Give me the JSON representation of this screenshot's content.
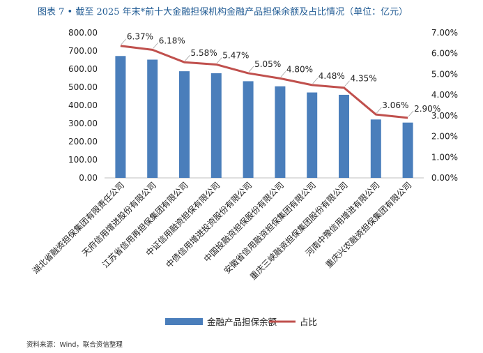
{
  "title": "图表 7 • 截至 2025 年末*前十大金融担保机构金融产品担保余额及占比情况（单位：亿元）",
  "source": "资料来源：Wind，联合资信整理",
  "colors": {
    "bar": "#4a7ebb",
    "line": "#c0504d",
    "title": "#1f5a93"
  },
  "chart_data": {
    "type": "bar",
    "categories": [
      "湖北省融资担保集团有限责任公司",
      "天府信用增进股份有限公司",
      "江苏省信用再担保集团有限公司",
      "中证信用融资担保有限公司",
      "中债信用增进投资股份有限公司",
      "中国投融资担保股份有限公司",
      "安徽省信用融资担保集团有限公司",
      "重庆三峡融资担保集团股份有限公司",
      "河南中豫信用增进有限公司",
      "重庆兴农融资担保集团有限公司"
    ],
    "series": [
      {
        "name": "金融产品担保余额",
        "type": "bar",
        "axis": "left",
        "values": [
          672,
          652,
          588,
          577,
          533,
          505,
          471,
          458,
          322,
          305
        ]
      },
      {
        "name": "占比",
        "type": "line",
        "axis": "right",
        "values": [
          6.37,
          6.18,
          5.58,
          5.47,
          5.05,
          4.8,
          4.48,
          4.35,
          3.06,
          2.9
        ],
        "labels": [
          "6.37%",
          "6.18%",
          "5.58%",
          "5.47%",
          "5.05%",
          "4.80%",
          "4.48%",
          "4.35%",
          "3.06%",
          "2.90%"
        ]
      }
    ],
    "y_left": {
      "ticks": [
        "0.00",
        "100.00",
        "200.00",
        "300.00",
        "400.00",
        "500.00",
        "600.00",
        "700.00",
        "800.00"
      ],
      "ylim": [
        0,
        800
      ]
    },
    "y_right": {
      "ticks": [
        "0.00%",
        "1.00%",
        "2.00%",
        "3.00%",
        "4.00%",
        "5.00%",
        "6.00%",
        "7.00%"
      ],
      "ylim": [
        0,
        7
      ]
    },
    "grid": false,
    "legend": "bottom"
  }
}
